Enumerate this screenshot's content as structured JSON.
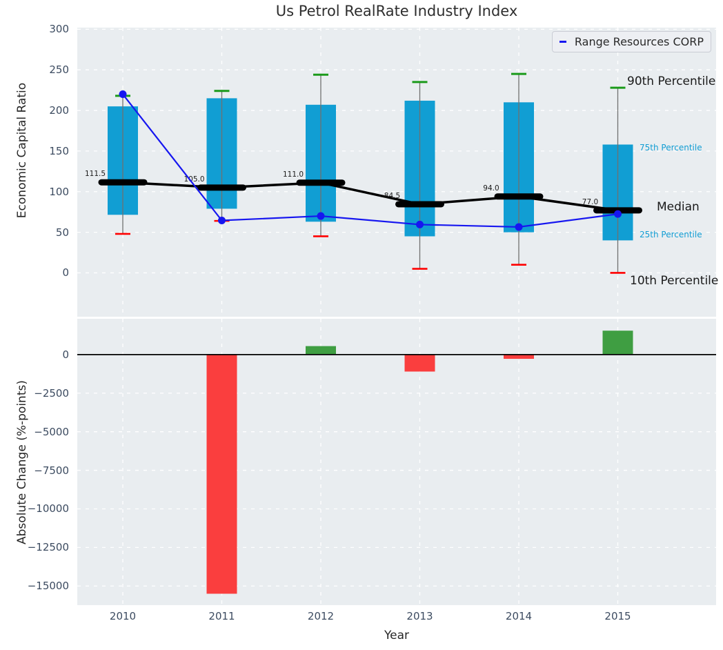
{
  "chart_data": [
    {
      "type": "line",
      "subtype": "percentile-box-whisker-with-company-line",
      "title": "Us Petrol RealRate Industry Index",
      "ylabel": "Economic Capital Ratio",
      "x": [
        2010,
        2011,
        2012,
        2013,
        2014,
        2015
      ],
      "ylim": [
        -54,
        302
      ],
      "yticks": [
        0,
        50,
        100,
        150,
        200,
        250,
        300
      ],
      "grid": true,
      "legend_position": "upper right",
      "series": [
        {
          "name": "90th Percentile",
          "values": [
            218,
            224,
            244,
            235,
            245,
            228
          ]
        },
        {
          "name": "75th Percentile",
          "values": [
            205,
            215,
            207,
            212,
            210,
            158
          ]
        },
        {
          "name": "Median",
          "values": [
            111.5,
            105.0,
            111.0,
            84.5,
            94.0,
            77.0
          ]
        },
        {
          "name": "25th Percentile",
          "values": [
            71.5,
            79,
            63,
            45,
            50,
            40
          ]
        },
        {
          "name": "10th Percentile",
          "values": [
            48,
            64,
            45,
            5,
            10,
            0
          ]
        },
        {
          "name": "Range Resources CORP",
          "values": [
            220,
            64.5,
            70,
            59.5,
            56.5,
            72.5
          ]
        }
      ],
      "median_labels": [
        "111.5",
        "105.0",
        "111.0",
        "84.5",
        "94.0",
        "77.0"
      ],
      "annotations": [
        {
          "label": "90th Percentile"
        },
        {
          "label": "75th Percentile"
        },
        {
          "label": "Median"
        },
        {
          "label": "25th Percentile"
        },
        {
          "label": "10th Percentile"
        }
      ],
      "colors": {
        "box": "#119ed3",
        "cap_high": "#1a9a1a",
        "cap_low": "#ff0000",
        "median": "#000000",
        "company": "#1616f0",
        "whisker": "#707070"
      }
    },
    {
      "type": "bar",
      "ylabel": "Absolute Change (%-points)",
      "xlabel": "Year",
      "categories": [
        2010,
        2011,
        2012,
        2013,
        2014,
        2015
      ],
      "values": [
        0,
        -15500,
        550,
        -1100,
        -275,
        1550
      ],
      "ylim": [
        -16240,
        2320
      ],
      "yticks": [
        0,
        -2500,
        -5000,
        -7500,
        -10000,
        -12500,
        -15000
      ],
      "grid": true,
      "colors": {
        "positive": "#3f9e42",
        "negative": "#fa3e3e",
        "zero_line": "#000000"
      }
    }
  ]
}
